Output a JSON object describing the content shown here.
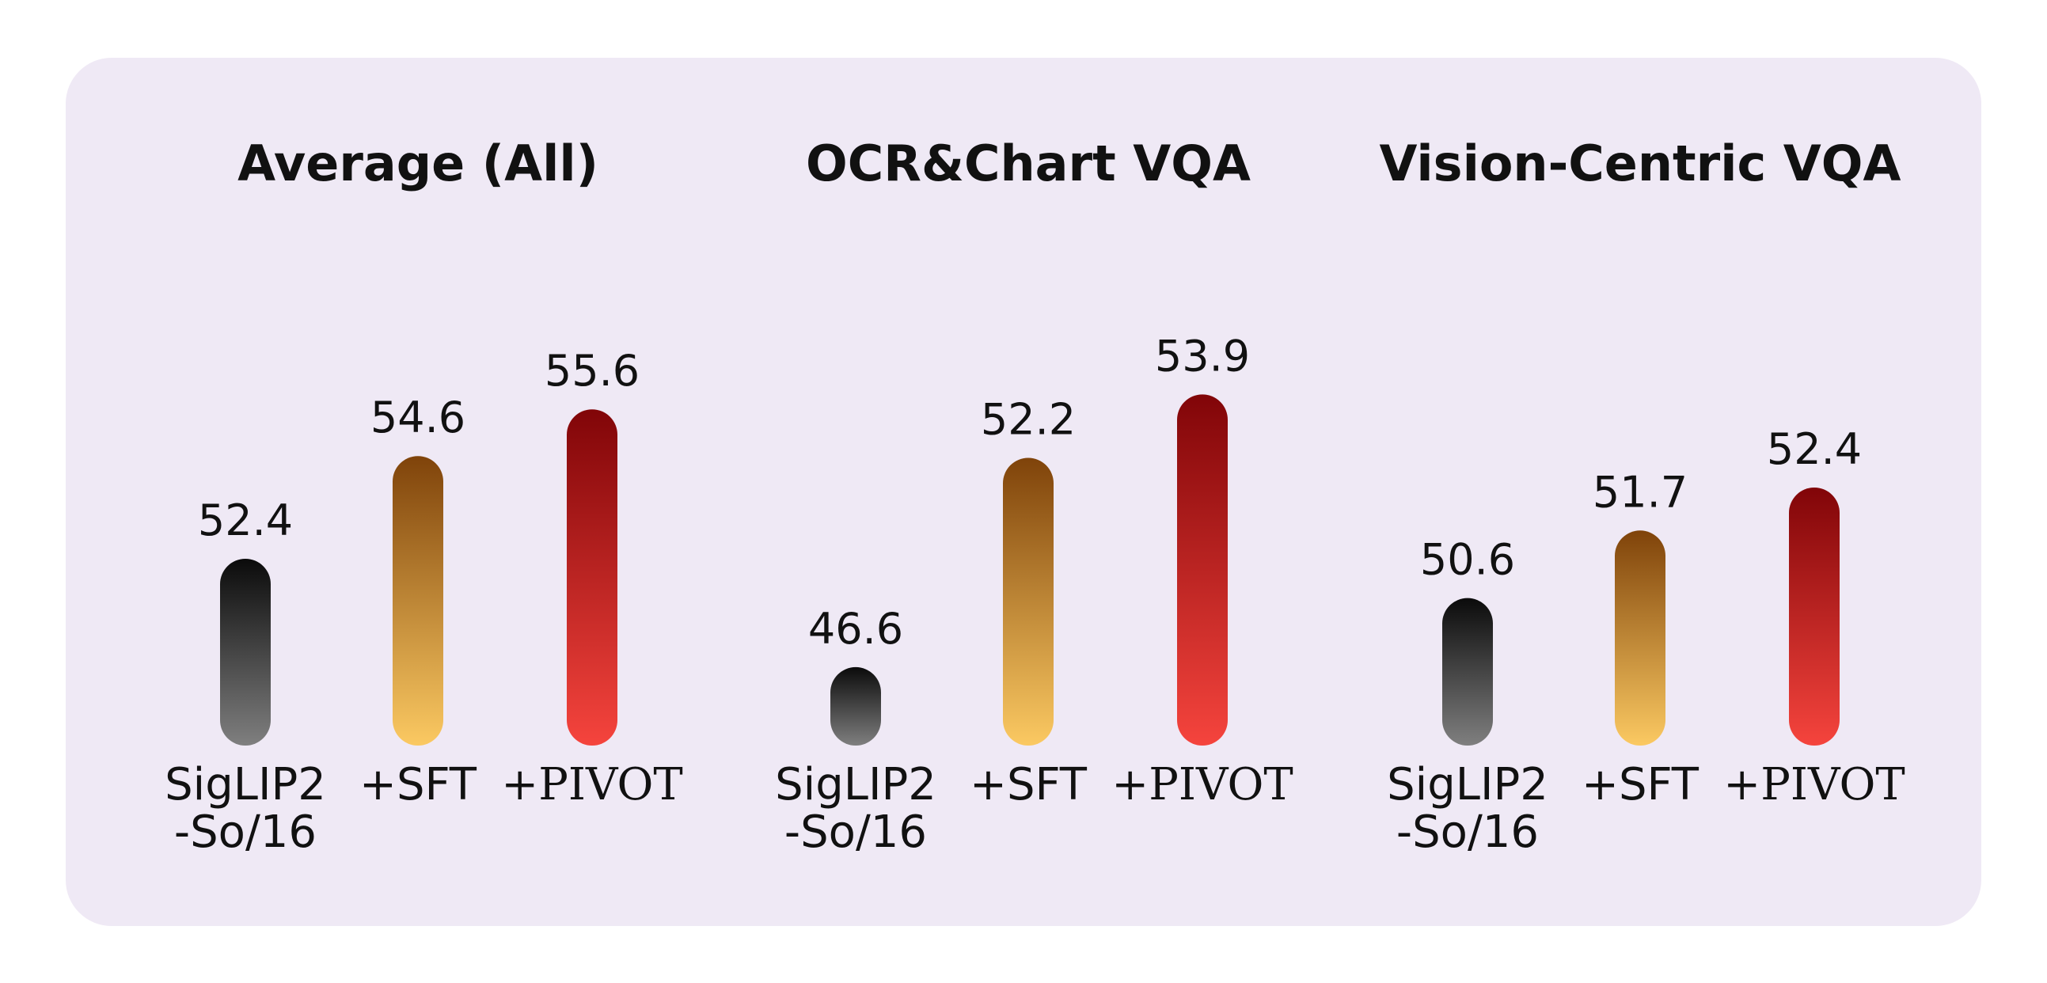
{
  "chart_data": [
    {
      "type": "bar",
      "title": "Average (All)",
      "categories": [
        "SigLIP2\n-So/16",
        "+SFT",
        "+PIVOT"
      ],
      "values": [
        52.4,
        54.6,
        55.6
      ],
      "ylim": [
        48.4,
        58.4
      ]
    },
    {
      "type": "bar",
      "title": "OCR&Chart VQA",
      "categories": [
        "SigLIP2\n-So/16",
        "+SFT",
        "+PIVOT"
      ],
      "values": [
        46.6,
        52.2,
        53.9
      ],
      "ylim": [
        44.5,
        57.0
      ]
    },
    {
      "type": "bar",
      "title": "Vision-Centric VQA",
      "categories": [
        "SigLIP2\n-So/16",
        "+SFT",
        "+PIVOT"
      ],
      "values": [
        50.6,
        51.7,
        52.4
      ],
      "ylim": [
        48.2,
        55.8
      ]
    }
  ],
  "colors": {
    "panel_background": "#efe9f5",
    "baseline_gradient": [
      "#0b0b0b",
      "#7f7f7f"
    ],
    "sft_gradient": [
      "#7f430a",
      "#fbc962"
    ],
    "pivot_gradient": [
      "#810508",
      "#f5443d"
    ],
    "text": "#111111"
  },
  "legend_placement": "none",
  "grid": false
}
